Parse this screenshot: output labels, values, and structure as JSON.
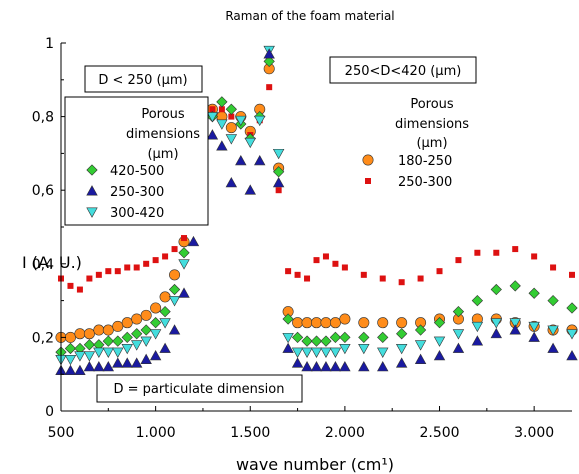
{
  "chart_data": {
    "type": "scatter",
    "title": "Raman of the foam material",
    "xlabel": "wave number (cm¹)",
    "ylabel": "I (A. U.)",
    "xlim": [
      500,
      3200
    ],
    "ylim": [
      0,
      1
    ],
    "xticks": [
      500,
      1000,
      1500,
      2000,
      2500,
      3000
    ],
    "xtick_labels": [
      "500",
      "1.000",
      "1.500",
      "2.000",
      "2.500",
      "3.000"
    ],
    "yticks": [
      0,
      0.2,
      0.4,
      0.6,
      0.8,
      1
    ],
    "ytick_labels": [
      "0",
      "0,2",
      "0,4",
      "0,6",
      "0,8",
      "1"
    ],
    "grid": false,
    "left_group": {
      "header": "D < 250 (µm)",
      "legend_title": [
        "Porous",
        "dimensions",
        "(µm)"
      ],
      "legend_placement": "upper-left",
      "series": [
        {
          "name": "420-500",
          "marker": "diamond",
          "color": "#33cc33",
          "x": [
            500,
            550,
            600,
            650,
            700,
            750,
            800,
            850,
            900,
            950,
            1000,
            1050,
            1100,
            1150,
            1200,
            1250,
            1300,
            1350,
            1400,
            1450,
            1500,
            1550,
            1600,
            1650,
            1700,
            1750,
            1800,
            1850,
            1900,
            1950,
            2000,
            2100,
            2200,
            2300,
            2400,
            2500,
            2600,
            2700,
            2800,
            2900,
            3000,
            3100,
            3200
          ],
          "y": [
            0.16,
            0.17,
            0.17,
            0.18,
            0.18,
            0.19,
            0.19,
            0.2,
            0.21,
            0.22,
            0.24,
            0.27,
            0.33,
            0.43,
            0.56,
            0.71,
            0.8,
            0.84,
            0.82,
            0.78,
            0.74,
            0.8,
            0.95,
            0.65,
            0.25,
            0.2,
            0.19,
            0.19,
            0.19,
            0.2,
            0.2,
            0.2,
            0.2,
            0.21,
            0.22,
            0.24,
            0.27,
            0.3,
            0.33,
            0.34,
            0.32,
            0.3,
            0.28
          ]
        },
        {
          "name": "250-300",
          "marker": "triangle-up",
          "color": "#1a1aa0",
          "x": [
            500,
            550,
            600,
            650,
            700,
            750,
            800,
            850,
            900,
            950,
            1000,
            1050,
            1100,
            1150,
            1200,
            1250,
            1300,
            1350,
            1400,
            1450,
            1500,
            1550,
            1600,
            1650,
            1700,
            1750,
            1800,
            1850,
            1900,
            1950,
            2000,
            2100,
            2200,
            2300,
            2400,
            2500,
            2600,
            2700,
            2800,
            2900,
            3000,
            3100,
            3200
          ],
          "y": [
            0.11,
            0.11,
            0.11,
            0.12,
            0.12,
            0.12,
            0.13,
            0.13,
            0.13,
            0.14,
            0.15,
            0.17,
            0.22,
            0.32,
            0.46,
            0.63,
            0.75,
            0.72,
            0.62,
            0.68,
            0.6,
            0.68,
            0.97,
            0.62,
            0.17,
            0.13,
            0.12,
            0.12,
            0.12,
            0.12,
            0.12,
            0.12,
            0.12,
            0.13,
            0.14,
            0.15,
            0.17,
            0.19,
            0.21,
            0.22,
            0.2,
            0.17,
            0.15
          ]
        },
        {
          "name": "300-420",
          "marker": "triangle-down",
          "color": "#44dddd",
          "x": [
            500,
            550,
            600,
            650,
            700,
            750,
            800,
            850,
            900,
            950,
            1000,
            1050,
            1100,
            1150,
            1200,
            1250,
            1300,
            1350,
            1400,
            1450,
            1500,
            1550,
            1600,
            1650,
            1700,
            1750,
            1800,
            1850,
            1900,
            1950,
            2000,
            2100,
            2200,
            2300,
            2400,
            2500,
            2600,
            2700,
            2800,
            2900,
            3000,
            3100,
            3200
          ],
          "y": [
            0.14,
            0.14,
            0.15,
            0.15,
            0.16,
            0.16,
            0.16,
            0.17,
            0.18,
            0.19,
            0.21,
            0.24,
            0.3,
            0.4,
            0.54,
            0.7,
            0.8,
            0.78,
            0.74,
            0.79,
            0.73,
            0.79,
            0.98,
            0.7,
            0.2,
            0.16,
            0.16,
            0.16,
            0.16,
            0.16,
            0.17,
            0.17,
            0.16,
            0.17,
            0.18,
            0.19,
            0.21,
            0.23,
            0.24,
            0.24,
            0.23,
            0.22,
            0.21
          ]
        }
      ]
    },
    "right_group": {
      "header": "250<D<420 (µm)",
      "legend_title": [
        "Porous",
        "dimensions",
        "(µm)"
      ],
      "legend_placement": "upper-right",
      "series": [
        {
          "name": "180-250",
          "marker": "circle",
          "color": "#ff8c1a",
          "x": [
            500,
            550,
            600,
            650,
            700,
            750,
            800,
            850,
            900,
            950,
            1000,
            1050,
            1100,
            1150,
            1200,
            1250,
            1300,
            1350,
            1400,
            1450,
            1500,
            1550,
            1600,
            1650,
            1700,
            1750,
            1800,
            1850,
            1900,
            1950,
            2000,
            2100,
            2200,
            2300,
            2400,
            2500,
            2600,
            2700,
            2800,
            2900,
            3000,
            3100,
            3200
          ],
          "y": [
            0.2,
            0.2,
            0.21,
            0.21,
            0.22,
            0.22,
            0.23,
            0.24,
            0.25,
            0.26,
            0.28,
            0.31,
            0.37,
            0.46,
            0.6,
            0.74,
            0.82,
            0.8,
            0.77,
            0.8,
            0.76,
            0.82,
            0.93,
            0.66,
            0.27,
            0.24,
            0.24,
            0.24,
            0.24,
            0.24,
            0.25,
            0.24,
            0.24,
            0.24,
            0.24,
            0.25,
            0.25,
            0.25,
            0.25,
            0.24,
            0.23,
            0.22,
            0.22
          ]
        },
        {
          "name": "250-300",
          "marker": "square",
          "color": "#dd1111",
          "x": [
            500,
            550,
            600,
            650,
            700,
            750,
            800,
            850,
            900,
            950,
            1000,
            1050,
            1100,
            1150,
            1200,
            1250,
            1300,
            1350,
            1400,
            1450,
            1500,
            1550,
            1600,
            1650,
            1700,
            1750,
            1800,
            1850,
            1900,
            1950,
            2000,
            2100,
            2200,
            2300,
            2400,
            2500,
            2600,
            2700,
            2800,
            2900,
            3000,
            3100,
            3200
          ],
          "y": [
            0.36,
            0.34,
            0.33,
            0.36,
            0.37,
            0.38,
            0.38,
            0.39,
            0.39,
            0.4,
            0.41,
            0.42,
            0.44,
            0.47,
            0.55,
            0.72,
            0.82,
            0.82,
            0.8,
            0.79,
            0.75,
            0.79,
            0.88,
            0.6,
            0.38,
            0.37,
            0.36,
            0.41,
            0.42,
            0.4,
            0.39,
            0.37,
            0.36,
            0.35,
            0.36,
            0.38,
            0.41,
            0.43,
            0.43,
            0.44,
            0.42,
            0.39,
            0.37
          ]
        }
      ]
    },
    "annotation": "D = particulate dimension"
  }
}
